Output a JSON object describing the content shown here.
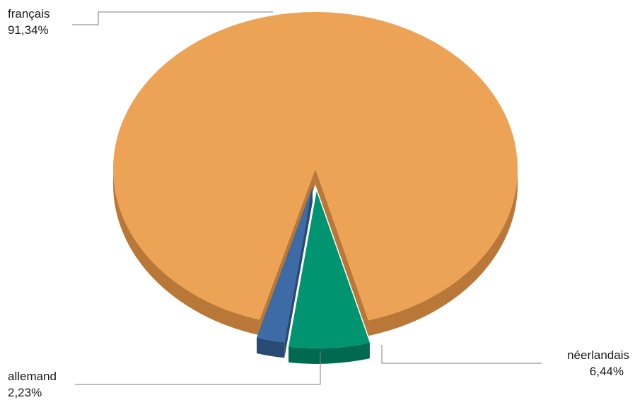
{
  "chart_data": {
    "type": "pie",
    "style": "3d-exploded",
    "slices": [
      {
        "label": "français",
        "value": 91.34,
        "value_label": "91,34%",
        "color": "#EDA355",
        "side_color": "#B97838"
      },
      {
        "label": "néerlandais",
        "value": 6.44,
        "value_label": "6,44%",
        "color": "#009470",
        "side_color": "#006A50"
      },
      {
        "label": "allemand",
        "value": 2.23,
        "value_label": "2,23%",
        "color": "#3D6BA5",
        "side_color": "#284A75"
      }
    ]
  }
}
